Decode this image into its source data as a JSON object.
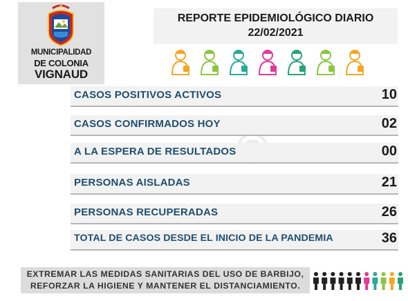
{
  "logo": {
    "line1": "MUNICIPALIDAD",
    "line2": "DE COLONIA",
    "line3": "VIGNAUD",
    "crest_text": "VIGNAUD"
  },
  "header": {
    "title": "REPORTE EPIDEMIOLÓGICO DIARIO",
    "date": "22/02/2021"
  },
  "workers": [
    {
      "icon": "delivery-worker-icon",
      "color": "#f5a623"
    },
    {
      "icon": "pharmacist-icon",
      "color": "#8cc63f"
    },
    {
      "icon": "police-icon",
      "color": "#2aa89a"
    },
    {
      "icon": "cashier-icon",
      "color": "#e4389b"
    },
    {
      "icon": "doctor-icon",
      "color": "#26a37a"
    },
    {
      "icon": "nurse-icon",
      "color": "#8cc63f"
    },
    {
      "icon": "farmer-icon",
      "color": "#f5a623"
    }
  ],
  "stats": [
    {
      "label": "CASOS POSITIVOS ACTIVOS",
      "value": "10"
    },
    {
      "label": "CASOS CONFIRMADOS HOY",
      "value": "02"
    },
    {
      "label": "A LA ESPERA DE RESULTADOS",
      "value": "00"
    },
    {
      "label": "PERSONAS AISLADAS",
      "value": "21"
    },
    {
      "label": "PERSONAS RECUPERADAS",
      "value": "26"
    },
    {
      "label": "TOTAL DE CASOS DESDE EL INICIO DE LA PANDEMIA",
      "value": "36"
    }
  ],
  "footer": {
    "line1": "EXTREMAR LAS MEDIDAS SANITARIAS DEL USO DE BARBIJO,",
    "line2": "REFORZAR LA HIGIENE Y MANTENER EL DISTANCIAMIENTO."
  },
  "people_colors": [
    "#222222",
    "#222222",
    "#222222",
    "#222222",
    "#222222",
    "#222222",
    "#e4389b",
    "#2aa89a",
    "#8cc63f",
    "#f5a623",
    "#26a37a"
  ]
}
